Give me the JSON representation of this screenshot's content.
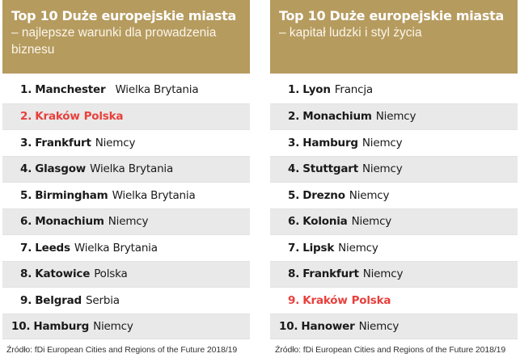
{
  "left_table": {
    "title": "Top 10 Duże europejskie miasta",
    "subtitle_line1": "– najlepsze warunki dla prowadzenia",
    "subtitle_line2": "biznesu",
    "rows": [
      {
        "rank": "1.",
        "city": "Manchester",
        "country": "Wielka Brytania",
        "highlight": false
      },
      {
        "rank": "2.",
        "city": "Kraków",
        "country": "Polska",
        "highlight": true
      },
      {
        "rank": "3.",
        "city": "Frankfurt",
        "country": "Niemcy",
        "highlight": false
      },
      {
        "rank": "4.",
        "city": "Glasgow",
        "country": "Wielka Brytania",
        "highlight": false
      },
      {
        "rank": "5.",
        "city": "Birmingham",
        "country": "Wielka Brytania",
        "highlight": false
      },
      {
        "rank": "6.",
        "city": "Monachium",
        "country": "Niemcy",
        "highlight": false
      },
      {
        "rank": "7.",
        "city": "Leeds",
        "country": "Wielka Brytania",
        "highlight": false
      },
      {
        "rank": "8.",
        "city": "Katowice",
        "country": "Polska",
        "highlight": false
      },
      {
        "rank": "9.",
        "city": "Belgrad",
        "country": "Serbia",
        "highlight": false
      },
      {
        "rank": "10.",
        "city": "Hamburg",
        "country": "Niemcy",
        "highlight": false
      }
    ],
    "source": "Źródło: fDi European Cities and Regions of the Future 2018/19"
  },
  "right_table": {
    "title": "Top 10 Duże europejskie miasta",
    "subtitle_line1": "– kapitał ludzki i styl życia",
    "rows": [
      {
        "rank": "1.",
        "city": "Lyon",
        "country": "Francja",
        "highlight": false
      },
      {
        "rank": "2.",
        "city": "Monachium",
        "country": "Niemcy",
        "highlight": false
      },
      {
        "rank": "3.",
        "city": "Hamburg",
        "country": "Niemcy",
        "highlight": false
      },
      {
        "rank": "4.",
        "city": "Stuttgart",
        "country": "Niemcy",
        "highlight": false
      },
      {
        "rank": "5.",
        "city": "Drezno",
        "country": "Niemcy",
        "highlight": false
      },
      {
        "rank": "6.",
        "city": "Kolonia",
        "country": "Niemcy",
        "highlight": false
      },
      {
        "rank": "7.",
        "city": "Lipsk",
        "country": "Niemcy",
        "highlight": false
      },
      {
        "rank": "8.",
        "city": "Frankfurt",
        "country": "Niemcy",
        "highlight": false
      },
      {
        "rank": "9.",
        "city": "Kraków",
        "country": "Polska",
        "highlight": true
      },
      {
        "rank": "10.",
        "city": "Hanower",
        "country": "Niemcy",
        "highlight": false
      }
    ],
    "source": "Źródło: fDi European Cities and Regions of the Future 2018/19"
  },
  "colors": {
    "header_bg": "#b69b5f",
    "highlight": "#e8403c",
    "row_shade": "#e9e9e9"
  }
}
